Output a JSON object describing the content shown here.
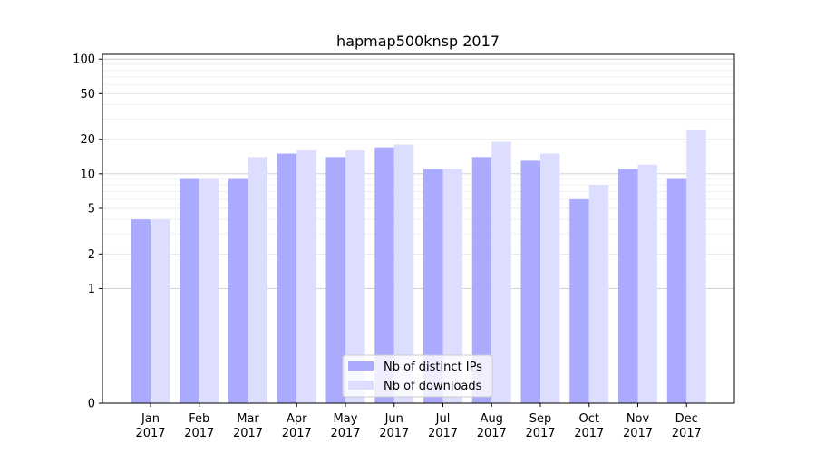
{
  "chart_data": {
    "type": "bar",
    "title": "hapmap500knsp 2017",
    "xlabel": "",
    "ylabel": "",
    "y_scale": "symlog",
    "ylim": [
      0,
      110
    ],
    "y_ticks": [
      0,
      1,
      2,
      5,
      10,
      20,
      50,
      100
    ],
    "categories": [
      "Jan\n2017",
      "Feb\n2017",
      "Mar\n2017",
      "Apr\n2017",
      "May\n2017",
      "Jun\n2017",
      "Jul\n2017",
      "Aug\n2017",
      "Sep\n2017",
      "Oct\n2017",
      "Nov\n2017",
      "Dec\n2017"
    ],
    "series": [
      {
        "name": "Nb of distinct IPs",
        "color": "#aaaaff",
        "values": [
          4,
          9,
          9,
          15,
          14,
          17,
          11,
          14,
          13,
          6,
          11,
          9
        ]
      },
      {
        "name": "Nb of downloads",
        "color": "#ddddff",
        "values": [
          4,
          9,
          14,
          16,
          16,
          18,
          11,
          19,
          15,
          8,
          12,
          24
        ]
      }
    ],
    "grid": true,
    "legend": "bottom-center"
  }
}
